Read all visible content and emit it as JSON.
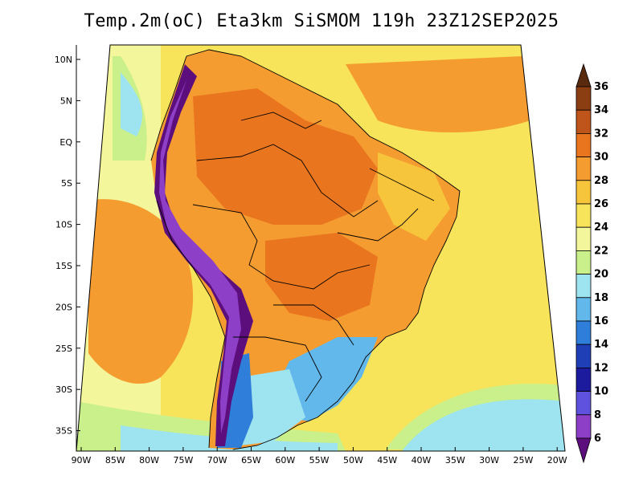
{
  "title": "Temp.2m(oC) Eta3km SiSMOM 119h 23Z12SEP2025",
  "lat_labels": [
    "10N",
    "5N",
    "EQ",
    "5S",
    "10S",
    "15S",
    "20S",
    "25S",
    "30S",
    "35S"
  ],
  "lon_labels": [
    "90W",
    "85W",
    "80W",
    "75W",
    "70W",
    "65W",
    "60W",
    "55W",
    "50W",
    "45W",
    "40W",
    "35W",
    "30W",
    "25W",
    "20W"
  ],
  "colorbar": {
    "labels": [
      "36",
      "34",
      "32",
      "30",
      "28",
      "26",
      "24",
      "22",
      "20",
      "18",
      "16",
      "14",
      "12",
      "10",
      "8",
      "6"
    ],
    "colors": [
      "#5a2a0e",
      "#8b3e12",
      "#c0551c",
      "#e9761f",
      "#f59c31",
      "#f7c53b",
      "#f7e45a",
      "#f3f69a",
      "#c9f08a",
      "#9ee3f0",
      "#62b8ea",
      "#2f7ed9",
      "#1f3fb7",
      "#1c1b9e",
      "#5f52df",
      "#8d3fc7",
      "#5c0f7c"
    ]
  }
}
